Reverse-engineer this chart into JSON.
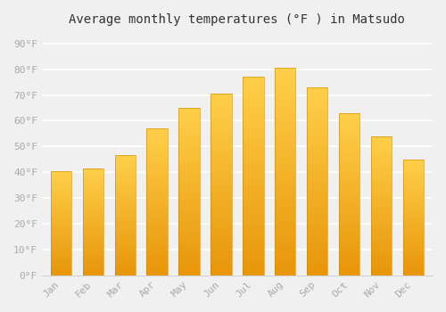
{
  "title": "Average monthly temperatures (°F ) in Matsudo",
  "months": [
    "Jan",
    "Feb",
    "Mar",
    "Apr",
    "May",
    "Jun",
    "Jul",
    "Aug",
    "Sep",
    "Oct",
    "Nov",
    "Dec"
  ],
  "values": [
    40.5,
    41.5,
    46.5,
    57,
    65,
    70.5,
    77,
    80.5,
    73,
    63,
    54,
    45
  ],
  "bar_color_bottom": "#E8960A",
  "bar_color_top": "#FFD04A",
  "background_color": "#f0f0f0",
  "grid_color": "#ffffff",
  "ytick_labels": [
    "0°F",
    "10°F",
    "20°F",
    "30°F",
    "40°F",
    "50°F",
    "60°F",
    "70°F",
    "80°F",
    "90°F"
  ],
  "ytick_values": [
    0,
    10,
    20,
    30,
    40,
    50,
    60,
    70,
    80,
    90
  ],
  "ylim": [
    0,
    95
  ],
  "title_fontsize": 10,
  "tick_fontsize": 8,
  "tick_color": "#aaaaaa",
  "font_family": "monospace",
  "bar_width": 0.65,
  "n_gradient_steps": 100
}
